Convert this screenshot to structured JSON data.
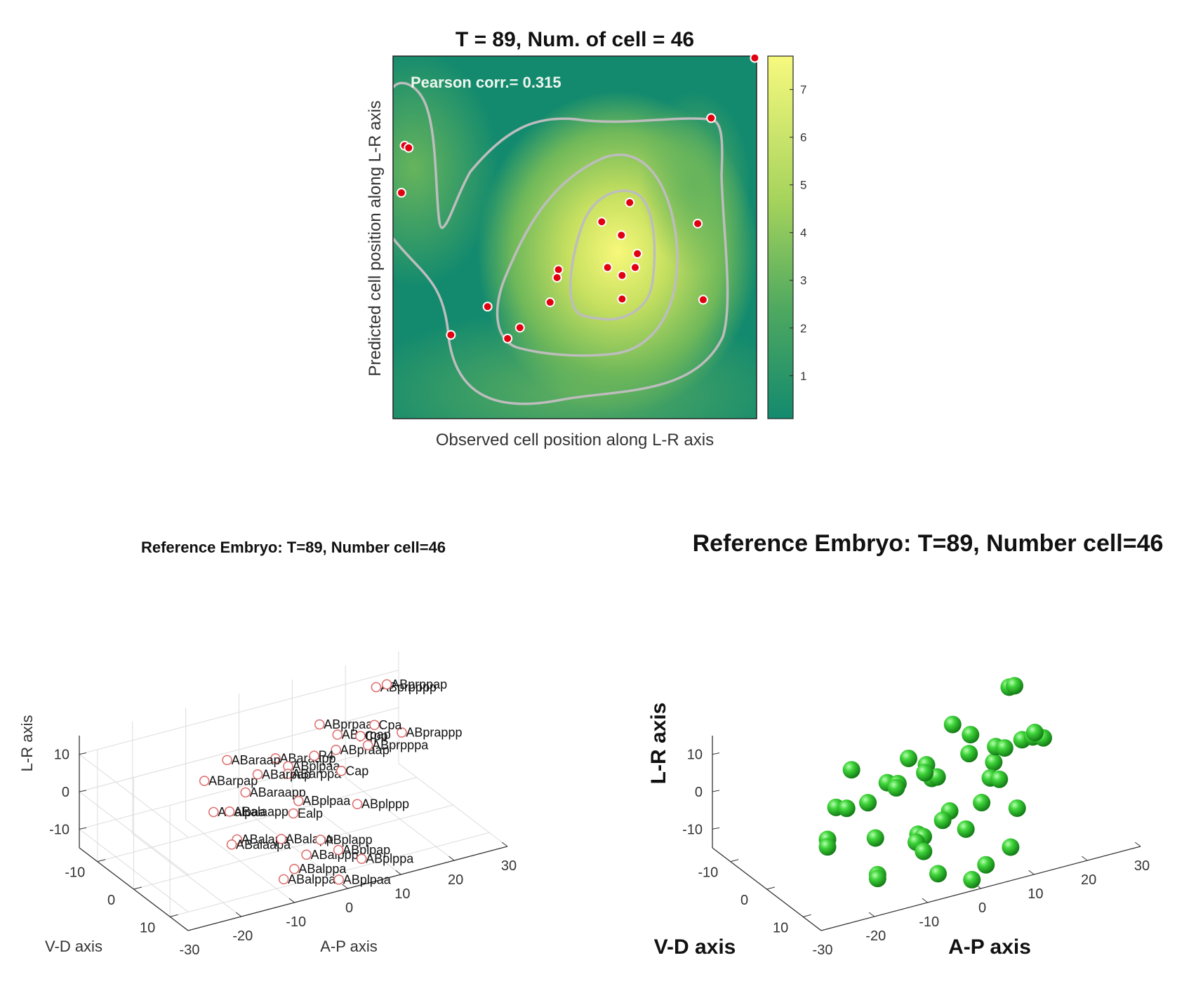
{
  "colors": {
    "heat_low": "#138a6e",
    "heat_mid": "#7fc35a",
    "heat_high": "#f5f77a",
    "contour": "#bdbdbd",
    "point": "#e00010",
    "marker_ring": "#e07070",
    "sphere": "#2bc22b"
  },
  "chart_data": [
    {
      "type": "scatter",
      "title": "T = 89, Num. of cell = 46",
      "xlabel": "Observed cell position along L-R axis",
      "ylabel": "Predicted cell position along L-R axis",
      "annotation": "Pearson corr.= 0.315",
      "xlim": [
        0,
        100
      ],
      "ylim": [
        0,
        100
      ],
      "axis_ticks_visible": false,
      "background": "kernel density heatmap with contour lines",
      "colorbar": {
        "ticks": [
          "1",
          "2",
          "3",
          "4",
          "5",
          "6",
          "7"
        ],
        "range": [
          0.1,
          7.7
        ]
      },
      "points": [
        {
          "x": 99.5,
          "y": 99.5
        },
        {
          "x": 87.5,
          "y": 82.9
        },
        {
          "x": 3.2,
          "y": 75.3
        },
        {
          "x": 4.3,
          "y": 74.7
        },
        {
          "x": 2.3,
          "y": 62.3
        },
        {
          "x": 65.1,
          "y": 59.6
        },
        {
          "x": 57.4,
          "y": 54.3
        },
        {
          "x": 83.8,
          "y": 53.8
        },
        {
          "x": 62.8,
          "y": 50.6
        },
        {
          "x": 67.2,
          "y": 45.5
        },
        {
          "x": 45.5,
          "y": 41.1
        },
        {
          "x": 59.0,
          "y": 41.7
        },
        {
          "x": 66.6,
          "y": 41.7
        },
        {
          "x": 45.1,
          "y": 38.9
        },
        {
          "x": 63.0,
          "y": 39.5
        },
        {
          "x": 85.3,
          "y": 32.8
        },
        {
          "x": 63.0,
          "y": 33.0
        },
        {
          "x": 43.2,
          "y": 32.1
        },
        {
          "x": 26.0,
          "y": 30.9
        },
        {
          "x": 34.9,
          "y": 25.1
        },
        {
          "x": 15.9,
          "y": 23.1
        },
        {
          "x": 31.5,
          "y": 22.1
        }
      ]
    },
    {
      "type": "scatter",
      "title": "Reference Embryo: T=89, Number cell=46",
      "xlabel": "A-P axis",
      "ylabel": "V-D axis",
      "zlabel": "L-R axis",
      "xticks": [
        "-30",
        "-20",
        "-10",
        "0",
        "10",
        "20",
        "30"
      ],
      "yticks": [
        "-10",
        "0",
        "10"
      ],
      "zticks": [
        "-10",
        "0",
        "10"
      ],
      "xlim": [
        -30,
        30
      ],
      "ylim": [
        -15,
        15
      ],
      "zlim": [
        -15,
        15
      ],
      "grid": true,
      "marker": "open circle",
      "points": [
        {
          "ap": 21,
          "vd": -8,
          "lr": 14,
          "label": "ABprpppp"
        },
        {
          "ap": 23,
          "vd": -8,
          "lr": 14,
          "label": "ABprppap"
        },
        {
          "ap": 9,
          "vd": -6,
          "lr": 10,
          "label": "ABprpaa"
        },
        {
          "ap": 11,
          "vd": -4,
          "lr": 8,
          "label": "ABprpap"
        },
        {
          "ap": 19,
          "vd": 2,
          "lr": 10,
          "label": "ABprappp"
        },
        {
          "ap": 8,
          "vd": 0,
          "lr": 8,
          "label": "ABpraap"
        },
        {
          "ap": 14,
          "vd": 0,
          "lr": 7,
          "label": "ABprpppa"
        },
        {
          "ap": -2,
          "vd": -2,
          "lr": 8,
          "label": "ABaraapp"
        },
        {
          "ap": -1,
          "vd": 0,
          "lr": 7,
          "label": "ABplpaa"
        },
        {
          "ap": -7,
          "vd": -8,
          "lr": 5,
          "label": "ABaraap"
        },
        {
          "ap": 1,
          "vd": -3,
          "lr": 2,
          "label": "ABarppa"
        },
        {
          "ap": 8,
          "vd": -6,
          "lr": 2,
          "label": "P4"
        },
        {
          "ap": 16,
          "vd": -5,
          "lr": 5,
          "label": "Cpp"
        },
        {
          "ap": 20,
          "vd": -7,
          "lr": 5,
          "label": "Cpa"
        },
        {
          "ap": -14,
          "vd": -4,
          "lr": 5,
          "label": "ABarpap"
        },
        {
          "ap": -9,
          "vd": 0,
          "lr": 3,
          "label": "ABaraapp"
        },
        {
          "ap": -4,
          "vd": -4,
          "lr": 3,
          "label": "ABarpap"
        },
        {
          "ap": -15,
          "vd": 0,
          "lr": 0,
          "label": "ABalpaa"
        },
        {
          "ap": -12,
          "vd": 0,
          "lr": -1,
          "label": "ABalaapp"
        },
        {
          "ap": 9,
          "vd": 0,
          "lr": 2,
          "label": "Cap"
        },
        {
          "ap": -14,
          "vd": 5,
          "lr": -4,
          "label": "ABalapa"
        },
        {
          "ap": -15,
          "vd": 5,
          "lr": -5,
          "label": "ABalaapa"
        },
        {
          "ap": 0,
          "vd": 0,
          "lr": -6,
          "label": "Ealp"
        },
        {
          "ap": 3,
          "vd": -3,
          "lr": -6,
          "label": "ABplpaa"
        },
        {
          "ap": -5,
          "vd": 4,
          "lr": -8,
          "label": "ABalapp"
        },
        {
          "ap": 1,
          "vd": 6,
          "lr": -9,
          "label": "ABplapp"
        },
        {
          "ap": -3,
          "vd": 8,
          "lr": -10,
          "label": "ABalppp"
        },
        {
          "ap": 12,
          "vd": 0,
          "lr": -8,
          "label": "ABplppp"
        },
        {
          "ap": 3,
          "vd": 8,
          "lr": -11,
          "label": "ABplpap"
        },
        {
          "ap": -8,
          "vd": 12,
          "lr": -9,
          "label": "ABalppa"
        },
        {
          "ap": -10,
          "vd": 12,
          "lr": -11,
          "label": "ABalppa"
        },
        {
          "ap": 6,
          "vd": 10,
          "lr": -13,
          "label": "ABplppa"
        },
        {
          "ap": -1,
          "vd": 14,
          "lr": -13,
          "label": "ABplpaa"
        }
      ]
    },
    {
      "type": "scatter",
      "title": "Reference Embryo: T=89, Number cell=46",
      "xlabel": "A-P axis",
      "ylabel": "V-D axis",
      "zlabel": "L-R axis",
      "xticks": [
        "-30",
        "-20",
        "-10",
        "0",
        "10",
        "20",
        "30"
      ],
      "yticks": [
        "-10",
        "0",
        "10"
      ],
      "zticks": [
        "-10",
        "0",
        "10"
      ],
      "xlim": [
        -30,
        30
      ],
      "ylim": [
        -15,
        15
      ],
      "zlim": [
        -15,
        15
      ],
      "grid": false,
      "marker": "sphere",
      "points": [
        {
          "ap": 21,
          "vd": -8,
          "lr": 14
        },
        {
          "ap": 22,
          "vd": -8,
          "lr": 14
        },
        {
          "ap": 9,
          "vd": -6,
          "lr": 10
        },
        {
          "ap": 11,
          "vd": -4,
          "lr": 8
        },
        {
          "ap": 19,
          "vd": 2,
          "lr": 10
        },
        {
          "ap": 8,
          "vd": 0,
          "lr": 7
        },
        {
          "ap": 13,
          "vd": 0,
          "lr": 7
        },
        {
          "ap": 14,
          "vd": 1,
          "lr": 7
        },
        {
          "ap": -2,
          "vd": -2,
          "lr": 8
        },
        {
          "ap": 0,
          "vd": 0,
          "lr": 7
        },
        {
          "ap": -1,
          "vd": 1,
          "lr": 6
        },
        {
          "ap": 1,
          "vd": 0,
          "lr": 3
        },
        {
          "ap": 2,
          "vd": 0,
          "lr": 3
        },
        {
          "ap": -10,
          "vd": -6,
          "lr": 5
        },
        {
          "ap": -6,
          "vd": -2,
          "lr": 3
        },
        {
          "ap": -5,
          "vd": -1,
          "lr": 2
        },
        {
          "ap": -4,
          "vd": -2,
          "lr": 2
        },
        {
          "ap": 20,
          "vd": -3,
          "lr": 4
        },
        {
          "ap": 22,
          "vd": -3,
          "lr": 4
        },
        {
          "ap": 24,
          "vd": -3,
          "lr": 3
        },
        {
          "ap": 14,
          "vd": -2,
          "lr": 1
        },
        {
          "ap": 12,
          "vd": 0,
          "lr": -1
        },
        {
          "ap": 13,
          "vd": 1,
          "lr": -1
        },
        {
          "ap": -17,
          "vd": 0,
          "lr": 2
        },
        {
          "ap": -15,
          "vd": 0,
          "lr": 1
        },
        {
          "ap": -11,
          "vd": 0,
          "lr": 1
        },
        {
          "ap": -22,
          "vd": 5,
          "lr": -1
        },
        {
          "ap": -22,
          "vd": 5,
          "lr": -3
        },
        {
          "ap": -13,
          "vd": 5,
          "lr": -4
        },
        {
          "ap": -5,
          "vd": 5,
          "lr": -6
        },
        {
          "ap": -6,
          "vd": 6,
          "lr": -7
        },
        {
          "ap": -4,
          "vd": 5,
          "lr": -7
        },
        {
          "ap": 1,
          "vd": 3,
          "lr": -6
        },
        {
          "ap": 3,
          "vd": 2,
          "lr": -5
        },
        {
          "ap": 4,
          "vd": 5,
          "lr": -8
        },
        {
          "ap": 9,
          "vd": 2,
          "lr": -5
        },
        {
          "ap": 15,
          "vd": 3,
          "lr": -8
        },
        {
          "ap": -6,
          "vd": 8,
          "lr": -8
        },
        {
          "ap": -16,
          "vd": 10,
          "lr": -9
        },
        {
          "ap": -16,
          "vd": 10,
          "lr": -10
        },
        {
          "ap": -6,
          "vd": 12,
          "lr": -11
        },
        {
          "ap": 9,
          "vd": 10,
          "lr": -11
        },
        {
          "ap": 3,
          "vd": 12,
          "lr": -12
        },
        {
          "ap": -1,
          "vd": 14,
          "lr": -13
        }
      ]
    }
  ]
}
